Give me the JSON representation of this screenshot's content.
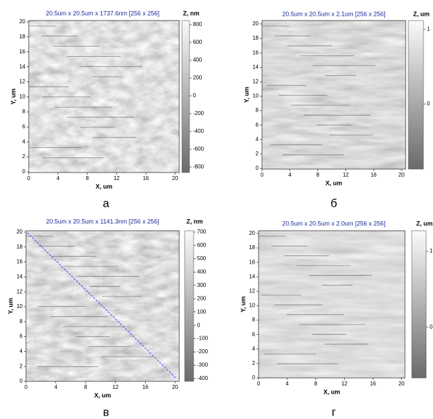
{
  "panels": [
    {
      "title": "20.5um x 20.5um x 1737.6nm [256 x 256]",
      "x_label": "X, um",
      "y_label": "Y, um",
      "x_ticks": [
        0,
        4,
        8,
        12,
        16,
        20
      ],
      "y_ticks": [
        0,
        2,
        4,
        6,
        8,
        10,
        12,
        14,
        16,
        18,
        20
      ],
      "colorbar_label": "Z, nm",
      "colorbar_ticks": [
        800,
        600,
        400,
        200,
        0,
        -200,
        -400,
        -600,
        -800
      ],
      "caption": "а"
    },
    {
      "title": "20.5um x 20.5um x 2.1um [256 x 256]",
      "x_label": "X, um",
      "y_label": "Y, um",
      "x_ticks": [
        0,
        4,
        8,
        12,
        16,
        20
      ],
      "y_ticks": [
        0,
        2,
        4,
        6,
        8,
        10,
        12,
        14,
        16,
        18,
        20
      ],
      "colorbar_label": "Z, um",
      "colorbar_ticks": [
        1,
        0
      ],
      "caption": "б"
    },
    {
      "title": "20.5um x 20.5um x 1141.3nm [256 x 256]",
      "x_label": "X, um",
      "y_label": "Y, um",
      "x_ticks": [
        0,
        4,
        8,
        12,
        16,
        20
      ],
      "y_ticks": [
        0,
        2,
        4,
        6,
        8,
        10,
        12,
        14,
        16,
        18,
        20
      ],
      "colorbar_label": "Z, nm",
      "colorbar_ticks": [
        700,
        600,
        500,
        400,
        300,
        200,
        100,
        0,
        -100,
        -200,
        -300,
        -400
      ],
      "caption": "в"
    },
    {
      "title": "20.5um x 20.5um x 2.0um [256 x 256]",
      "x_label": "X, um",
      "y_label": "Y, um",
      "x_ticks": [
        0,
        4,
        8,
        12,
        16,
        20
      ],
      "y_ticks": [
        0,
        2,
        4,
        6,
        8,
        10,
        12,
        14,
        16,
        18,
        20
      ],
      "colorbar_label": "Z, um",
      "colorbar_ticks": [
        1,
        0
      ],
      "caption": "г"
    }
  ]
}
